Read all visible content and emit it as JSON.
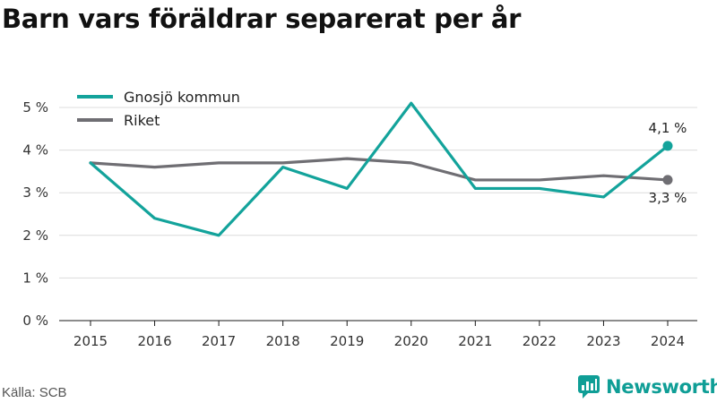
{
  "title": "Barn vars föräldrar separerat per år",
  "source": "Källa: SCB",
  "brand": {
    "name": "Newsworthy",
    "icon": "newsworthy-chart-icon"
  },
  "colors": {
    "series_primary": "#13a39b",
    "series_secondary": "#6f6e73",
    "grid": "#dcdcdc",
    "brand": "#0f9e96"
  },
  "chart_data": {
    "type": "line",
    "title": "Barn vars föräldrar separerat per år",
    "x": [
      "2015",
      "2016",
      "2017",
      "2018",
      "2019",
      "2020",
      "2021",
      "2022",
      "2023",
      "2024"
    ],
    "series": [
      {
        "name": "Gnosjö kommun",
        "color": "#13a39b",
        "values": [
          3.7,
          2.4,
          2.0,
          3.6,
          3.1,
          5.1,
          3.1,
          3.1,
          2.9,
          4.1
        ],
        "end_label": "4,1 %"
      },
      {
        "name": "Riket",
        "color": "#6f6e73",
        "values": [
          3.7,
          3.6,
          3.7,
          3.7,
          3.8,
          3.7,
          3.3,
          3.3,
          3.4,
          3.3
        ],
        "end_label": "3,3 %"
      }
    ],
    "yticks": [
      0,
      1,
      2,
      3,
      4,
      5
    ],
    "ytick_labels": [
      "0 %",
      "1 %",
      "2 %",
      "3 %",
      "4 %",
      "5 %"
    ],
    "ylim": [
      0,
      5
    ],
    "xlabel": "",
    "ylabel": "",
    "grid": true,
    "legend": "top-left"
  }
}
